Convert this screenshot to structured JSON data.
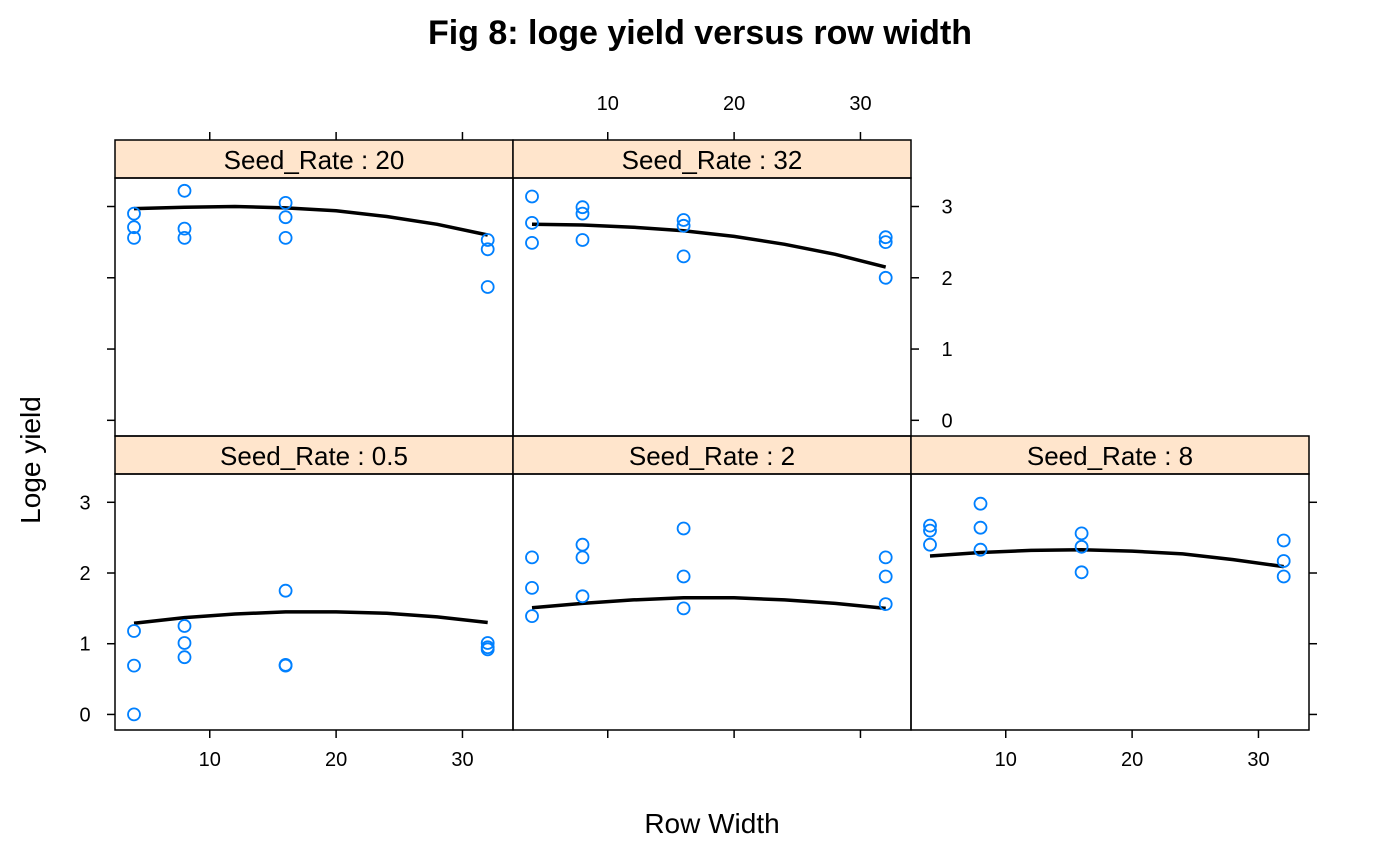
{
  "chart_data": {
    "type": "scatter",
    "title": "Fig 8: loge yield versus row width",
    "xlabel": "Row Width",
    "ylabel": "Loge yield",
    "xlim": [
      2.5,
      34
    ],
    "ylim": [
      -0.22,
      3.4
    ],
    "x_ticks": [
      10,
      20,
      30
    ],
    "y_ticks": [
      0,
      1,
      2,
      3
    ],
    "point_color": "#0080ff",
    "line_color": "#000000",
    "strip_color": "#ffe5cc",
    "panels": [
      {
        "strip_label": "Seed_Rate : 0.5",
        "points": [
          [
            4,
            1.18
          ],
          [
            4,
            0.69
          ],
          [
            4,
            0.0
          ],
          [
            8,
            1.25
          ],
          [
            8,
            1.01
          ],
          [
            8,
            0.81
          ],
          [
            16,
            1.75
          ],
          [
            16,
            0.7
          ],
          [
            16,
            0.69
          ],
          [
            32,
            1.01
          ],
          [
            32,
            0.95
          ],
          [
            32,
            0.92
          ]
        ],
        "fit": [
          [
            4,
            1.29
          ],
          [
            8,
            1.37
          ],
          [
            12,
            1.42
          ],
          [
            16,
            1.45
          ],
          [
            20,
            1.45
          ],
          [
            24,
            1.43
          ],
          [
            28,
            1.38
          ],
          [
            32,
            1.3
          ]
        ]
      },
      {
        "strip_label": "Seed_Rate : 2",
        "points": [
          [
            4,
            2.22
          ],
          [
            4,
            1.79
          ],
          [
            4,
            1.39
          ],
          [
            8,
            2.4
          ],
          [
            8,
            2.22
          ],
          [
            8,
            1.67
          ],
          [
            16,
            2.63
          ],
          [
            16,
            1.95
          ],
          [
            16,
            1.5
          ],
          [
            32,
            2.22
          ],
          [
            32,
            1.95
          ],
          [
            32,
            1.56
          ]
        ],
        "fit": [
          [
            4,
            1.51
          ],
          [
            8,
            1.57
          ],
          [
            12,
            1.62
          ],
          [
            16,
            1.65
          ],
          [
            20,
            1.65
          ],
          [
            24,
            1.62
          ],
          [
            28,
            1.57
          ],
          [
            32,
            1.5
          ]
        ]
      },
      {
        "strip_label": "Seed_Rate : 8",
        "points": [
          [
            4,
            2.67
          ],
          [
            4,
            2.6
          ],
          [
            4,
            2.4
          ],
          [
            8,
            2.98
          ],
          [
            8,
            2.64
          ],
          [
            8,
            2.33
          ],
          [
            16,
            2.56
          ],
          [
            16,
            2.37
          ],
          [
            16,
            2.01
          ],
          [
            32,
            2.46
          ],
          [
            32,
            2.17
          ],
          [
            32,
            1.95
          ]
        ],
        "fit": [
          [
            4,
            2.24
          ],
          [
            8,
            2.29
          ],
          [
            12,
            2.32
          ],
          [
            16,
            2.33
          ],
          [
            20,
            2.31
          ],
          [
            24,
            2.27
          ],
          [
            28,
            2.19
          ],
          [
            32,
            2.09
          ]
        ]
      },
      {
        "strip_label": "Seed_Rate : 20",
        "points": [
          [
            4,
            2.9
          ],
          [
            4,
            2.71
          ],
          [
            4,
            2.56
          ],
          [
            8,
            3.22
          ],
          [
            8,
            2.69
          ],
          [
            8,
            2.56
          ],
          [
            16,
            3.05
          ],
          [
            16,
            2.85
          ],
          [
            16,
            2.56
          ],
          [
            32,
            2.53
          ],
          [
            32,
            2.4
          ],
          [
            32,
            1.87
          ]
        ],
        "fit": [
          [
            4,
            2.97
          ],
          [
            8,
            2.99
          ],
          [
            12,
            3.0
          ],
          [
            16,
            2.98
          ],
          [
            20,
            2.94
          ],
          [
            24,
            2.86
          ],
          [
            28,
            2.75
          ],
          [
            32,
            2.6
          ]
        ]
      },
      {
        "strip_label": "Seed_Rate : 32",
        "points": [
          [
            4,
            3.14
          ],
          [
            4,
            2.77
          ],
          [
            4,
            2.49
          ],
          [
            8,
            2.99
          ],
          [
            8,
            2.9
          ],
          [
            8,
            2.53
          ],
          [
            16,
            2.81
          ],
          [
            16,
            2.73
          ],
          [
            16,
            2.3
          ],
          [
            32,
            2.57
          ],
          [
            32,
            2.5
          ],
          [
            32,
            2.0
          ]
        ],
        "fit": [
          [
            4,
            2.75
          ],
          [
            8,
            2.74
          ],
          [
            12,
            2.71
          ],
          [
            16,
            2.66
          ],
          [
            20,
            2.58
          ],
          [
            24,
            2.47
          ],
          [
            28,
            2.33
          ],
          [
            32,
            2.15
          ]
        ]
      }
    ]
  }
}
